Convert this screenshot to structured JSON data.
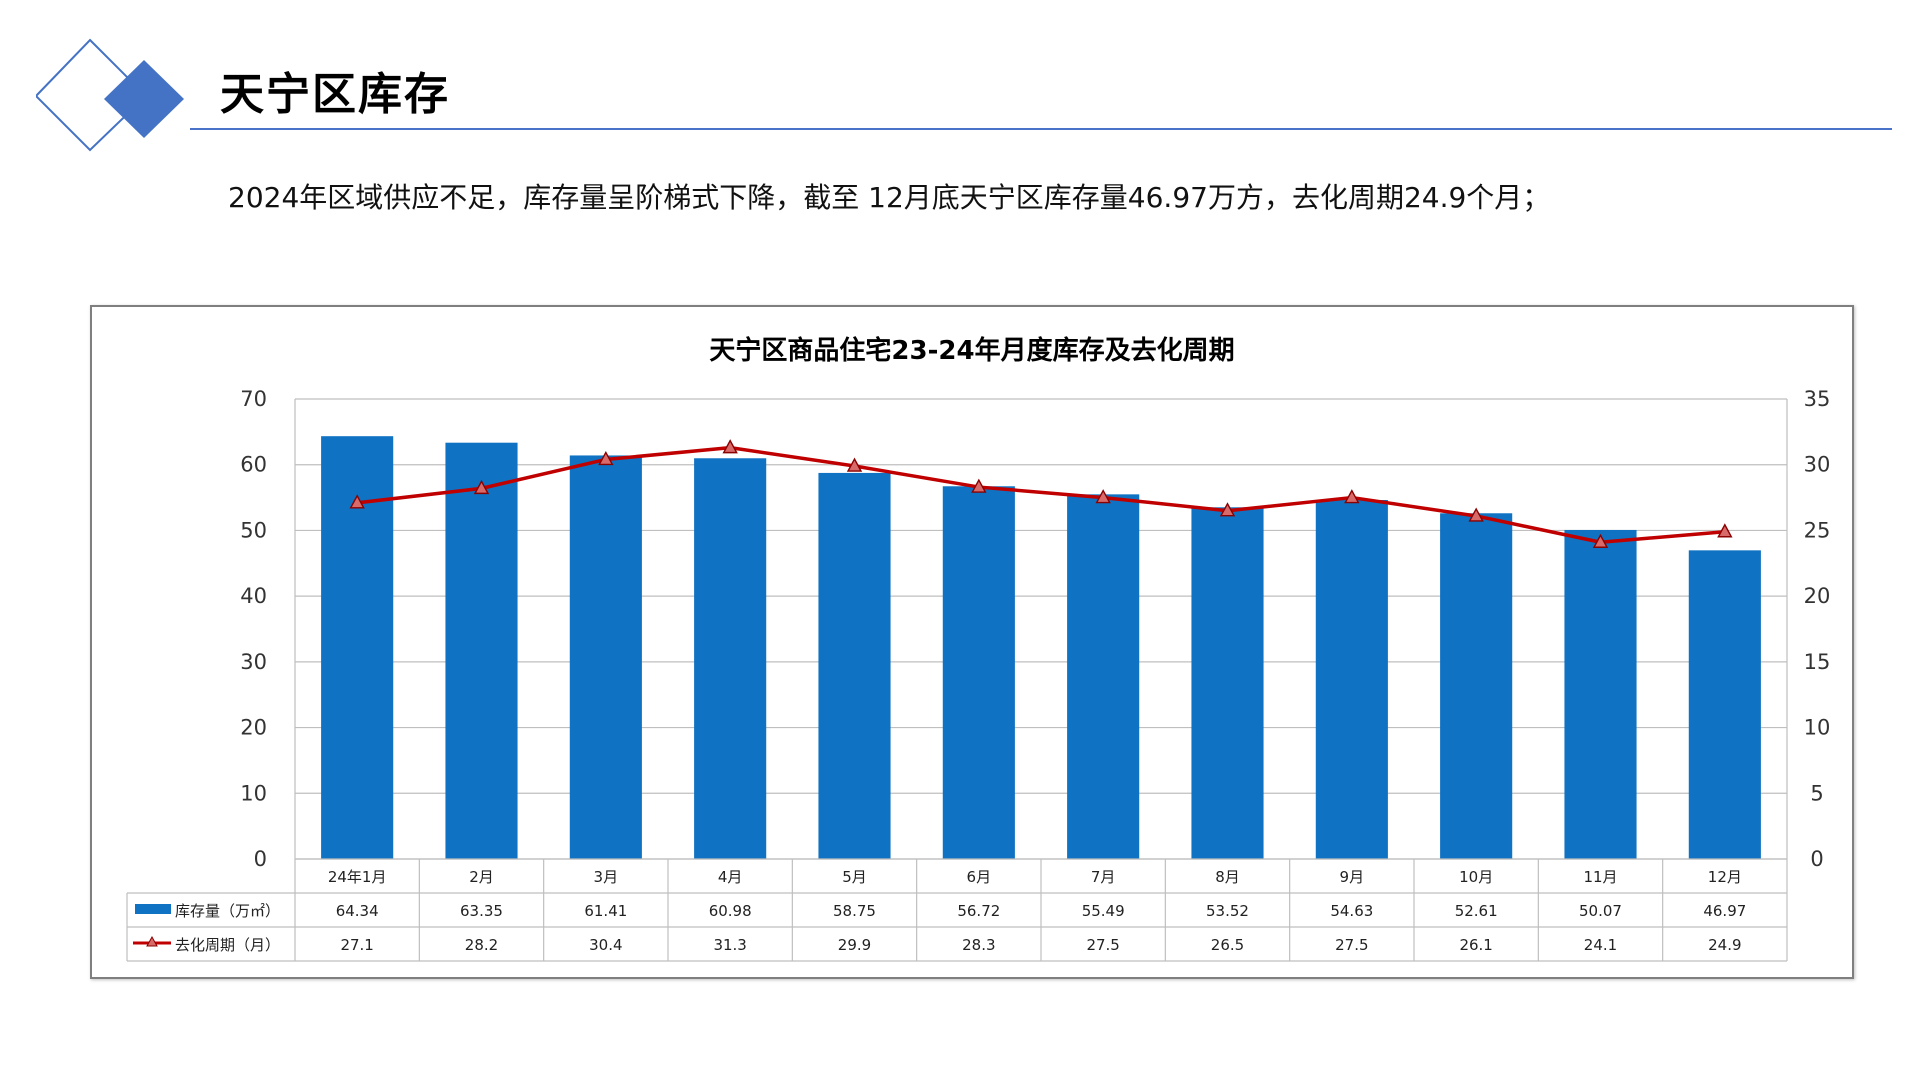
{
  "page": {
    "title": "天宁区库存",
    "summary": "2024年区域供应不足，库存量呈阶梯式下降，截至 12月底天宁区库存量46.97万方，去化周期24.9个月；",
    "accent_color": "#4472c4"
  },
  "chart_data": {
    "type": "bar",
    "title": "天宁区商品住宅23-24年月度库存及去化周期",
    "categories": [
      "24年1月",
      "2月",
      "3月",
      "4月",
      "5月",
      "6月",
      "7月",
      "8月",
      "9月",
      "10月",
      "11月",
      "12月"
    ],
    "series": [
      {
        "name": "库存量（万㎡）",
        "type": "bar",
        "axis": "left",
        "color": "#0f72c2",
        "values": [
          64.34,
          63.35,
          61.41,
          60.98,
          58.75,
          56.72,
          55.49,
          53.52,
          54.63,
          52.61,
          50.07,
          46.97
        ]
      },
      {
        "name": "去化周期（月）",
        "type": "line",
        "axis": "right",
        "color": "#c00000",
        "marker": "triangle",
        "values": [
          27.1,
          28.2,
          30.4,
          31.3,
          29.9,
          28.3,
          27.5,
          26.5,
          27.5,
          26.1,
          24.1,
          24.9
        ]
      }
    ],
    "y_left": {
      "min": 0,
      "max": 70,
      "ticks": [
        "0",
        "10",
        "20",
        "30",
        "40",
        "50",
        "60",
        "70"
      ]
    },
    "y_right": {
      "min": 0,
      "max": 35,
      "ticks": [
        "0",
        "5",
        "10",
        "15",
        "20",
        "25",
        "30",
        "35"
      ]
    },
    "grid": true,
    "legend": "data-table"
  }
}
